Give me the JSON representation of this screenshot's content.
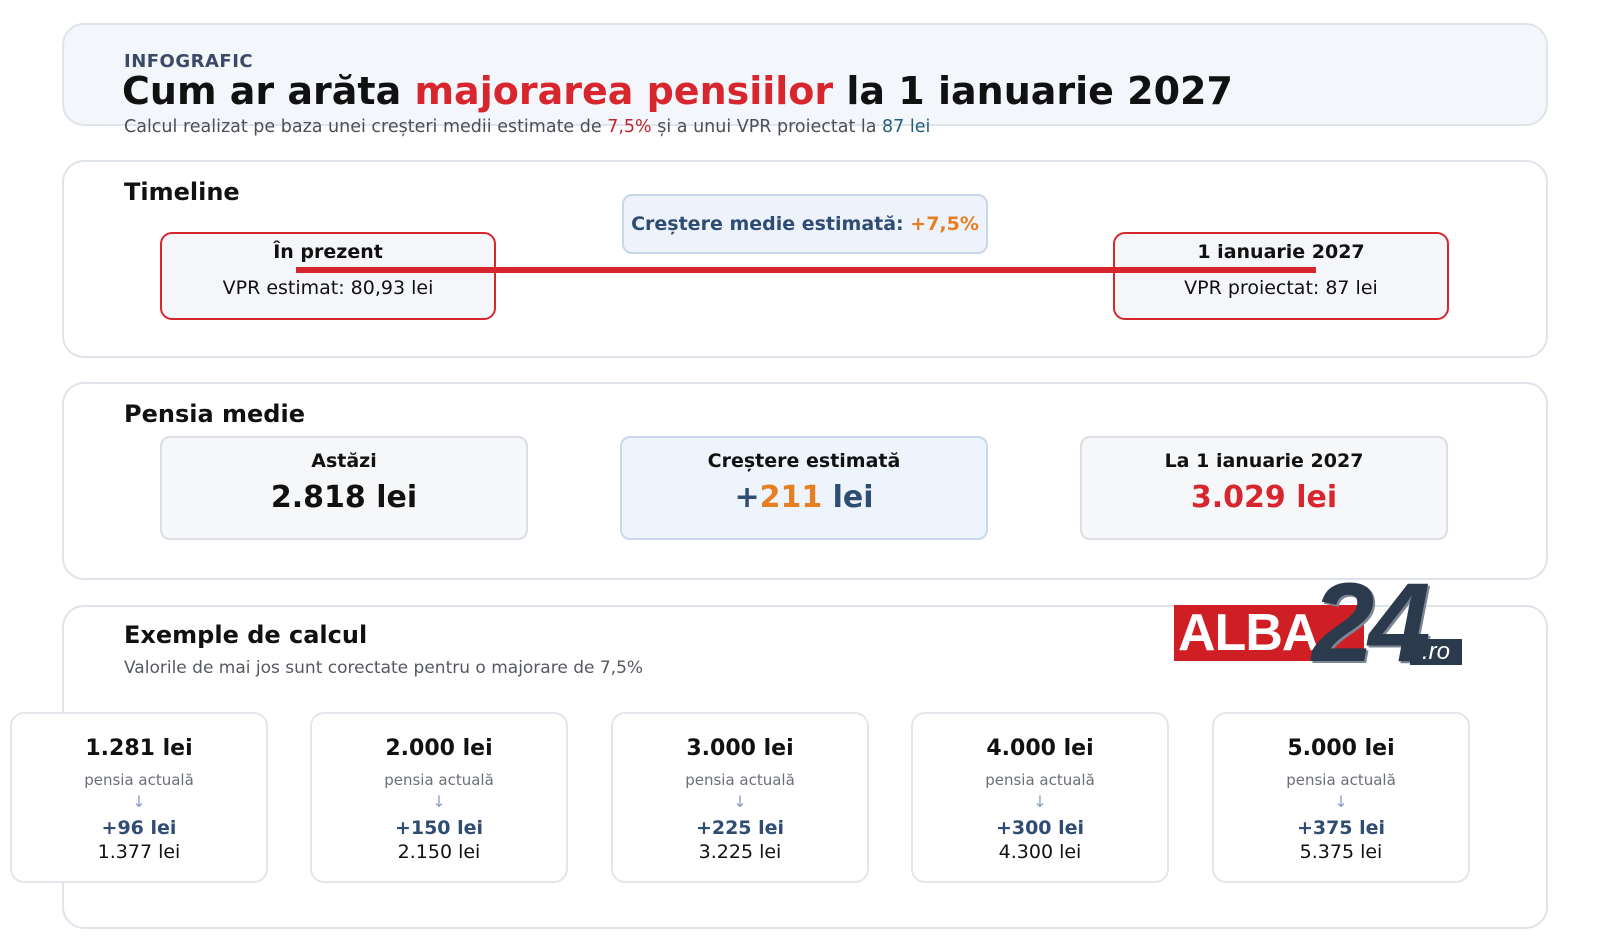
{
  "header": {
    "eyebrow": "INFOGRAFIC",
    "title_pre": "Cum ar arăta ",
    "title_highlight": "majorarea pensiilor",
    "title_post": " la 1 ianuarie 2027",
    "subtitle_pre": "Calcul realizat pe baza unei creșteri medii estimate de ",
    "subtitle_rate": "7,5%",
    "subtitle_mid": " și a unui VPR proiectat la ",
    "subtitle_vpr": "87 lei"
  },
  "timeline": {
    "title": "Timeline",
    "now_label": "În prezent",
    "now_value": "VPR estimat: 80,93 lei",
    "growth_label": "Creștere medie estimată: ",
    "growth_value": "+7,5%",
    "future_label": "1 ianuarie 2027",
    "future_value": "VPR proiectat: 87 lei"
  },
  "pension": {
    "title": "Pensia medie",
    "today_label": "Astăzi",
    "today_value": "2.818 lei",
    "growth_label": "Creștere estimată",
    "growth_sign": "+",
    "growth_amount": "211",
    "growth_unit": " lei",
    "future_label": "La 1 ianuarie 2027",
    "future_value": "3.029 lei"
  },
  "examples": {
    "title": "Exemple de calcul",
    "subtitle": "Valorile de mai jos sunt corectate pentru o majorare de 7,5%",
    "items": [
      {
        "amount": "1.281 lei",
        "label": "pensia actuală",
        "increase": "+96 lei",
        "result": "1.377 lei"
      },
      {
        "amount": "2.000 lei",
        "label": "pensia actuală",
        "increase": "+150 lei",
        "result": "2.150 lei"
      },
      {
        "amount": "3.000 lei",
        "label": "pensia actuală",
        "increase": "+225 lei",
        "result": "3.225 lei"
      },
      {
        "amount": "4.000 lei",
        "label": "pensia actuală",
        "increase": "+300 lei",
        "result": "4.300 lei"
      },
      {
        "amount": "5.000 lei",
        "label": "pensia actuală",
        "increase": "+375 lei",
        "result": "5.375 lei"
      }
    ],
    "arrow": "↓"
  },
  "logo": {
    "word": "ALBA",
    "number": "24",
    "suffix": ".ro"
  },
  "colors": {
    "accent_red": "#d7262d",
    "accent_orange": "#e67e22",
    "navy": "#2f4c73",
    "teal": "#1e5f7a"
  }
}
